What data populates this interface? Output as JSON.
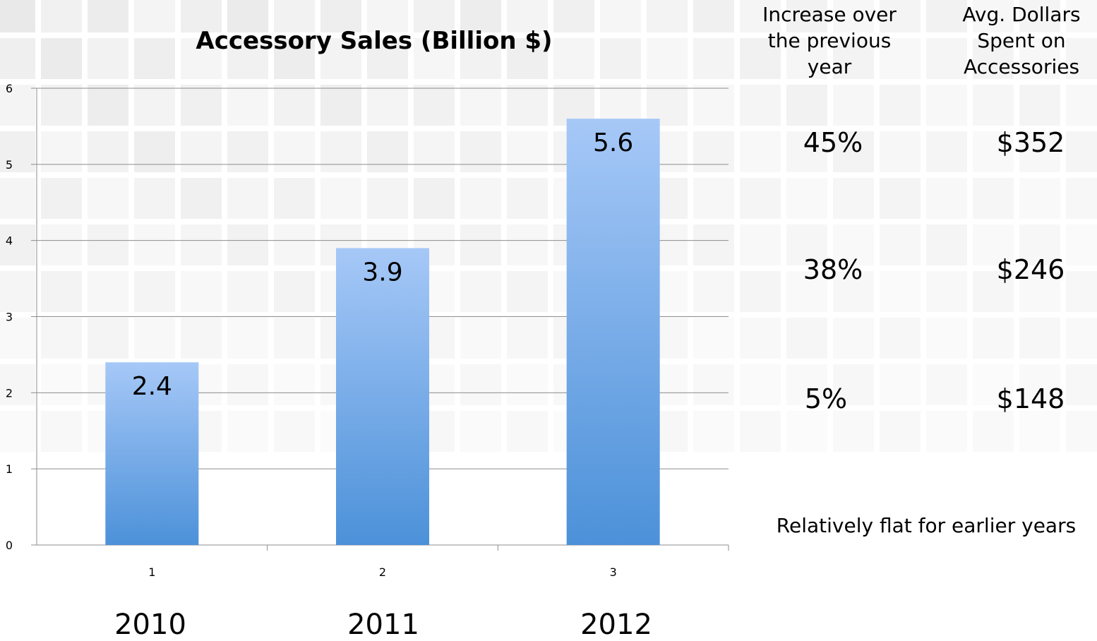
{
  "chart_data": {
    "type": "bar",
    "title": "Accessory Sales (Billion $)",
    "categories": [
      "1",
      "2",
      "3"
    ],
    "values": [
      2.4,
      3.9,
      5.6
    ],
    "data_labels": [
      "2.4",
      "3.9",
      "5.6"
    ],
    "yticks": [
      "0",
      "1",
      "2",
      "3",
      "4",
      "5",
      "6"
    ],
    "ylim": [
      0,
      6
    ],
    "grid": true,
    "bar_color_top": "#a6c8f7",
    "bar_color_bottom": "#4c91d9"
  },
  "years": [
    "2010",
    "2011",
    "2012"
  ],
  "table": {
    "increase_header": "Increase over the previous year",
    "avg_header": "Avg. Dollars Spent on Accessories",
    "rows": [
      {
        "increase": "45%",
        "avg": "$352"
      },
      {
        "increase": "38%",
        "avg": "$246"
      },
      {
        "increase": "5%",
        "avg": "$148"
      }
    ],
    "footnote": "Relatively flat for earlier years"
  }
}
